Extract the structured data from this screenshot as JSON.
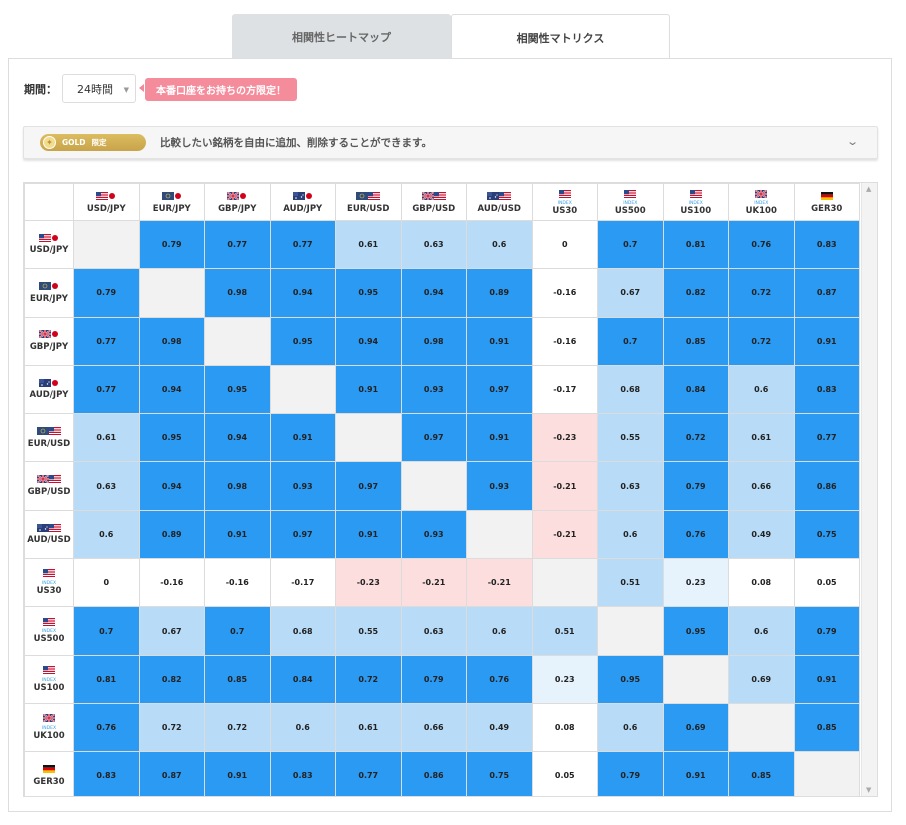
{
  "tabs": [
    {
      "label": "相関性ヒートマップ",
      "active": false
    },
    {
      "label": "相関性マトリクス",
      "active": true
    }
  ],
  "period": {
    "label": "期間：",
    "value": "24時間"
  },
  "promo": "本番口座をお持ちの方限定！",
  "gold": {
    "badge": "GOLD",
    "badge_sub": "限定",
    "text": "比較したい銘柄を自由に追加、削除することができます。"
  },
  "colors": {
    "strong": "#2b9af3",
    "medium": "#b8dcf8",
    "light": "#e6f3fd",
    "negative": "#fcdede",
    "neutral": "#ffffff",
    "diagonal": "#f2f2f2"
  },
  "instruments": [
    {
      "label": "USD/JPY",
      "flags": [
        "us",
        "jp"
      ],
      "index": false
    },
    {
      "label": "EUR/JPY",
      "flags": [
        "eu",
        "jp"
      ],
      "index": false
    },
    {
      "label": "GBP/JPY",
      "flags": [
        "gb",
        "jp"
      ],
      "index": false
    },
    {
      "label": "AUD/JPY",
      "flags": [
        "au",
        "jp"
      ],
      "index": false
    },
    {
      "label": "EUR/USD",
      "flags": [
        "eu",
        "us"
      ],
      "index": false
    },
    {
      "label": "GBP/USD",
      "flags": [
        "gb",
        "us"
      ],
      "index": false
    },
    {
      "label": "AUD/USD",
      "flags": [
        "au",
        "us"
      ],
      "index": false
    },
    {
      "label": "US30",
      "flags": [
        "us"
      ],
      "index": true
    },
    {
      "label": "US500",
      "flags": [
        "us"
      ],
      "index": true
    },
    {
      "label": "US100",
      "flags": [
        "us"
      ],
      "index": true
    },
    {
      "label": "UK100",
      "flags": [
        "gb"
      ],
      "index": true
    },
    {
      "label": "GER30",
      "flags": [
        "de"
      ],
      "index": false
    }
  ],
  "matrix": [
    [
      null,
      "0.79",
      "0.77",
      "0.77",
      "0.61",
      "0.63",
      "0.6",
      "0",
      "0.7",
      "0.81",
      "0.76",
      "0.83"
    ],
    [
      "0.79",
      null,
      "0.98",
      "0.94",
      "0.95",
      "0.94",
      "0.89",
      "-0.16",
      "0.67",
      "0.82",
      "0.72",
      "0.87"
    ],
    [
      "0.77",
      "0.98",
      null,
      "0.95",
      "0.94",
      "0.98",
      "0.91",
      "-0.16",
      "0.7",
      "0.85",
      "0.72",
      "0.91"
    ],
    [
      "0.77",
      "0.94",
      "0.95",
      null,
      "0.91",
      "0.93",
      "0.97",
      "-0.17",
      "0.68",
      "0.84",
      "0.6",
      "0.83"
    ],
    [
      "0.61",
      "0.95",
      "0.94",
      "0.91",
      null,
      "0.97",
      "0.91",
      "-0.23",
      "0.55",
      "0.72",
      "0.61",
      "0.77"
    ],
    [
      "0.63",
      "0.94",
      "0.98",
      "0.93",
      "0.97",
      null,
      "0.93",
      "-0.21",
      "0.63",
      "0.79",
      "0.66",
      "0.86"
    ],
    [
      "0.6",
      "0.89",
      "0.91",
      "0.97",
      "0.91",
      "0.93",
      null,
      "-0.21",
      "0.6",
      "0.76",
      "0.49",
      "0.75"
    ],
    [
      "0",
      "-0.16",
      "-0.16",
      "-0.17",
      "-0.23",
      "-0.21",
      "-0.21",
      null,
      "0.51",
      "0.23",
      "0.08",
      "0.05"
    ],
    [
      "0.7",
      "0.67",
      "0.7",
      "0.68",
      "0.55",
      "0.63",
      "0.6",
      "0.51",
      null,
      "0.95",
      "0.6",
      "0.79"
    ],
    [
      "0.81",
      "0.82",
      "0.85",
      "0.84",
      "0.72",
      "0.79",
      "0.76",
      "0.23",
      "0.95",
      null,
      "0.69",
      "0.91"
    ],
    [
      "0.76",
      "0.72",
      "0.72",
      "0.6",
      "0.61",
      "0.66",
      "0.49",
      "0.08",
      "0.6",
      "0.69",
      null,
      "0.85"
    ],
    [
      "0.83",
      "0.87",
      "0.91",
      "0.83",
      "0.77",
      "0.86",
      "0.75",
      "0.05",
      "0.79",
      "0.91",
      "0.85",
      null
    ]
  ],
  "cell_classes": [
    [
      "d",
      "s",
      "s",
      "s",
      "m",
      "m",
      "m",
      "n",
      "s",
      "s",
      "s",
      "s"
    ],
    [
      "s",
      "d",
      "s",
      "s",
      "s",
      "s",
      "s",
      "n",
      "m",
      "s",
      "s",
      "s"
    ],
    [
      "s",
      "s",
      "d",
      "s",
      "s",
      "s",
      "s",
      "n",
      "s",
      "s",
      "s",
      "s"
    ],
    [
      "s",
      "s",
      "s",
      "d",
      "s",
      "s",
      "s",
      "n",
      "m",
      "s",
      "m",
      "s"
    ],
    [
      "m",
      "s",
      "s",
      "s",
      "d",
      "s",
      "s",
      "r",
      "m",
      "s",
      "m",
      "s"
    ],
    [
      "m",
      "s",
      "s",
      "s",
      "s",
      "d",
      "s",
      "r",
      "m",
      "s",
      "m",
      "s"
    ],
    [
      "m",
      "s",
      "s",
      "s",
      "s",
      "s",
      "d",
      "r",
      "m",
      "s",
      "m",
      "s"
    ],
    [
      "n",
      "n",
      "n",
      "n",
      "r",
      "r",
      "r",
      "d",
      "m",
      "l",
      "n",
      "n"
    ],
    [
      "s",
      "m",
      "s",
      "m",
      "m",
      "m",
      "m",
      "m",
      "d",
      "s",
      "m",
      "s"
    ],
    [
      "s",
      "s",
      "s",
      "s",
      "s",
      "s",
      "s",
      "l",
      "s",
      "d",
      "m",
      "s"
    ],
    [
      "s",
      "m",
      "m",
      "m",
      "m",
      "m",
      "m",
      "n",
      "m",
      "s",
      "d",
      "s"
    ],
    [
      "s",
      "s",
      "s",
      "s",
      "s",
      "s",
      "s",
      "n",
      "s",
      "s",
      "s",
      "d"
    ]
  ]
}
